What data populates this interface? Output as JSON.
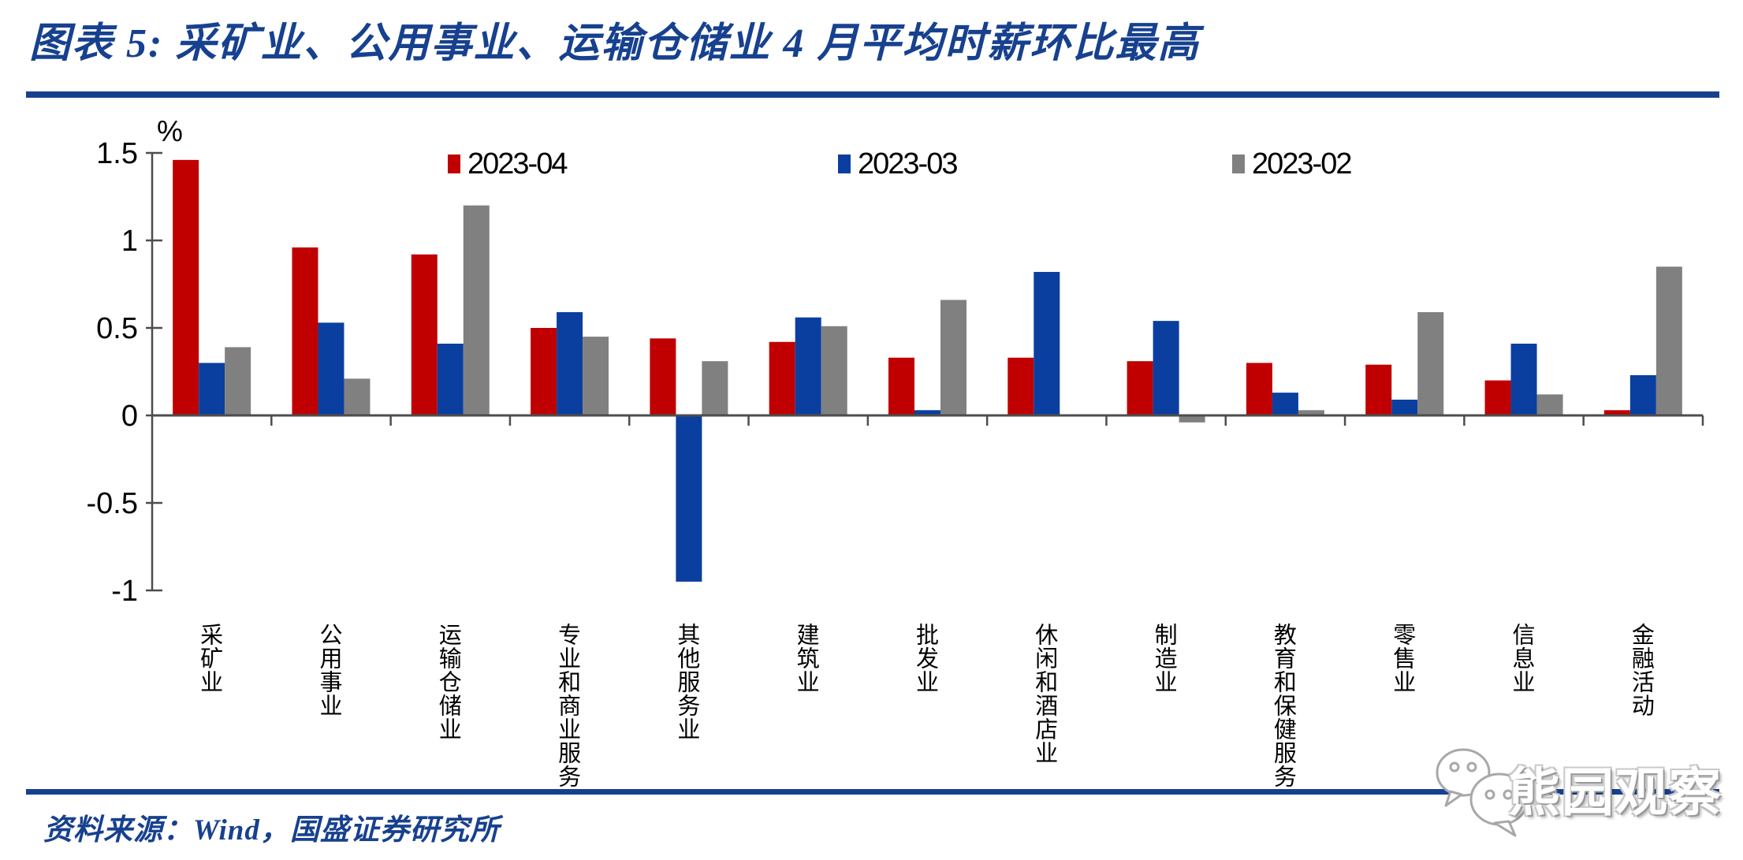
{
  "figure": {
    "title": "图表 5: 采矿业、公用事业、运输仓储业 4 月平均时薪环比最高",
    "source": "资料来源：Wind，国盛证券研究所",
    "watermark": "熊园观察",
    "colors": {
      "navy_accent": "#17418F",
      "axis": "#4d4d4d",
      "text": "#000000"
    }
  },
  "chart_data": {
    "type": "bar",
    "unit_label": "%",
    "title": "采矿业、公用事业、运输仓储业4月平均时薪环比最高",
    "categories": [
      "采矿业",
      "公用事业",
      "运输仓储业",
      "专业和商业服务",
      "其他服务业",
      "建筑业",
      "批发业",
      "休闲和酒店业",
      "制造业",
      "教育和保健服务",
      "零售业",
      "信息业",
      "金融活动"
    ],
    "series": [
      {
        "name": "2023-04",
        "color": "#C00000",
        "values": [
          1.46,
          0.96,
          0.92,
          0.5,
          0.44,
          0.42,
          0.33,
          0.33,
          0.31,
          0.3,
          0.29,
          0.2,
          0.03
        ]
      },
      {
        "name": "2023-03",
        "color": "#0A3F9F",
        "values": [
          0.3,
          0.53,
          0.41,
          0.59,
          -0.95,
          0.56,
          0.03,
          0.82,
          0.54,
          0.13,
          0.09,
          0.41,
          0.23
        ]
      },
      {
        "name": "2023-02",
        "color": "#808080",
        "values": [
          0.39,
          0.21,
          1.2,
          0.45,
          0.31,
          0.51,
          0.66,
          0.0,
          -0.04,
          0.03,
          0.59,
          0.12,
          0.85
        ]
      }
    ],
    "ylim": [
      -1,
      1.5
    ],
    "yticks": [
      {
        "value": 1.5,
        "label": "1.5"
      },
      {
        "value": 1,
        "label": "1"
      },
      {
        "value": 0.5,
        "label": "0.5"
      },
      {
        "value": 0,
        "label": "0"
      },
      {
        "value": -0.5,
        "label": "-0.5"
      },
      {
        "value": -1,
        "label": "-1"
      }
    ],
    "legend_position": "top",
    "grid": false
  }
}
